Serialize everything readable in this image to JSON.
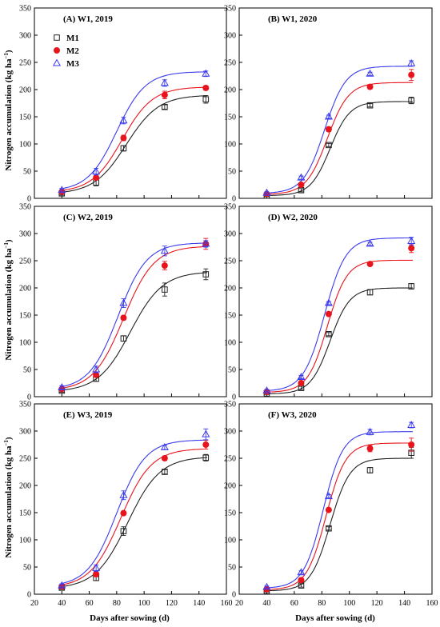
{
  "figure": {
    "ylabel": "Nitrogen accumulation (kg ha",
    "ylabel_sup": "−1",
    "ylabel_end": ")",
    "xlabel": "Days after sowing (d)"
  },
  "colors": {
    "M1": "#222222",
    "M2": "#e8141b",
    "M3": "#3a3aee"
  },
  "chart_data": [
    {
      "type": "scatter",
      "title": "(A) W1, 2019",
      "grid": false,
      "legend": "top-left",
      "xlim": [
        20,
        160
      ],
      "ylim": [
        0,
        350
      ],
      "xticks": [
        20,
        40,
        60,
        80,
        100,
        120,
        140,
        160
      ],
      "yticks": [
        0,
        50,
        100,
        150,
        200,
        250,
        300,
        350
      ],
      "x": [
        40,
        65,
        85,
        115,
        145
      ],
      "series": [
        {
          "name": "M1",
          "values": [
            9,
            29,
            92,
            168,
            182
          ],
          "errors": [
            3,
            6,
            5,
            4,
            7
          ],
          "fit": [
            8,
            190,
            0.085,
            87
          ]
        },
        {
          "name": "M2",
          "values": [
            12,
            38,
            111,
            190,
            203
          ],
          "errors": [
            3,
            4,
            5,
            7,
            4
          ],
          "fit": [
            11,
            205,
            0.09,
            84
          ]
        },
        {
          "name": "M3",
          "values": [
            15,
            49,
            143,
            212,
            229
          ],
          "errors": [
            3,
            6,
            6,
            6,
            5
          ],
          "fit": [
            13,
            233,
            0.095,
            80
          ]
        }
      ]
    },
    {
      "type": "scatter",
      "title": "(B) W1, 2020",
      "grid": false,
      "legend": "none",
      "xlim": [
        20,
        160
      ],
      "ylim": [
        0,
        350
      ],
      "xticks": [
        20,
        40,
        60,
        80,
        100,
        120,
        140,
        160
      ],
      "yticks": [
        0,
        50,
        100,
        150,
        200,
        250,
        300,
        350
      ],
      "x": [
        40,
        65,
        85,
        115,
        145
      ],
      "series": [
        {
          "name": "M1",
          "values": [
            5,
            15,
            98,
            171,
            180
          ],
          "errors": [
            2,
            3,
            3,
            3,
            6
          ],
          "fit": [
            5,
            178,
            0.14,
            86
          ]
        },
        {
          "name": "M2",
          "values": [
            8,
            25,
            127,
            205,
            227
          ],
          "errors": [
            2,
            3,
            4,
            4,
            10
          ],
          "fit": [
            7,
            213,
            0.13,
            84
          ]
        },
        {
          "name": "M3",
          "values": [
            10,
            38,
            150,
            229,
            248
          ],
          "errors": [
            2,
            3,
            3,
            3,
            5
          ],
          "fit": [
            9,
            243,
            0.13,
            82
          ]
        }
      ]
    },
    {
      "type": "scatter",
      "title": "(C) W2, 2019",
      "grid": false,
      "legend": "none",
      "xlim": [
        20,
        160
      ],
      "ylim": [
        0,
        350
      ],
      "xticks": [
        20,
        40,
        60,
        80,
        100,
        120,
        140,
        160
      ],
      "yticks": [
        0,
        50,
        100,
        150,
        200,
        250,
        300,
        350
      ],
      "x": [
        40,
        65,
        85,
        115,
        145
      ],
      "series": [
        {
          "name": "M1",
          "values": [
            11,
            33,
            107,
            197,
            225
          ],
          "errors": [
            3,
            5,
            5,
            12,
            10
          ],
          "fit": [
            9,
            230,
            0.085,
            90
          ]
        },
        {
          "name": "M2",
          "values": [
            14,
            40,
            145,
            241,
            281
          ],
          "errors": [
            3,
            4,
            4,
            8,
            10
          ],
          "fit": [
            11,
            277,
            0.09,
            85
          ]
        },
        {
          "name": "M3",
          "values": [
            17,
            50,
            172,
            268,
            281
          ],
          "errors": [
            3,
            6,
            8,
            9,
            6
          ],
          "fit": [
            13,
            283,
            0.095,
            81
          ]
        }
      ]
    },
    {
      "type": "scatter",
      "title": "(D) W2, 2020",
      "grid": false,
      "legend": "none",
      "xlim": [
        20,
        160
      ],
      "ylim": [
        0,
        350
      ],
      "xticks": [
        20,
        40,
        60,
        80,
        100,
        120,
        140,
        160
      ],
      "yticks": [
        0,
        50,
        100,
        150,
        200,
        250,
        300,
        350
      ],
      "x": [
        40,
        65,
        85,
        115,
        145
      ],
      "series": [
        {
          "name": "M1",
          "values": [
            6,
            16,
            115,
            192,
            203
          ],
          "errors": [
            2,
            3,
            3,
            5,
            5
          ],
          "fit": [
            5,
            200,
            0.14,
            86
          ]
        },
        {
          "name": "M2",
          "values": [
            9,
            25,
            152,
            244,
            273
          ],
          "errors": [
            2,
            3,
            3,
            3,
            8
          ],
          "fit": [
            8,
            251,
            0.14,
            84
          ]
        },
        {
          "name": "M3",
          "values": [
            11,
            36,
            172,
            281,
            286
          ],
          "errors": [
            2,
            3,
            3,
            3,
            7
          ],
          "fit": [
            10,
            292,
            0.13,
            82
          ]
        }
      ]
    },
    {
      "type": "scatter",
      "title": "(E) W3, 2019",
      "grid": false,
      "legend": "none",
      "xlim": [
        20,
        160
      ],
      "ylim": [
        0,
        350
      ],
      "xticks": [
        20,
        40,
        60,
        80,
        100,
        120,
        140,
        160
      ],
      "yticks": [
        0,
        50,
        100,
        150,
        200,
        250,
        300,
        350
      ],
      "x": [
        40,
        65,
        85,
        115,
        145
      ],
      "series": [
        {
          "name": "M1",
          "values": [
            12,
            30,
            116,
            225,
            251
          ],
          "errors": [
            3,
            5,
            8,
            4,
            6
          ],
          "fit": [
            10,
            253,
            0.085,
            88
          ]
        },
        {
          "name": "M2",
          "values": [
            14,
            37,
            149,
            250,
            275
          ],
          "errors": [
            3,
            5,
            4,
            4,
            8
          ],
          "fit": [
            12,
            268,
            0.09,
            83
          ]
        },
        {
          "name": "M3",
          "values": [
            16,
            48,
            182,
            270,
            294
          ],
          "errors": [
            3,
            6,
            8,
            4,
            10
          ],
          "fit": [
            14,
            284,
            0.095,
            80
          ]
        }
      ]
    },
    {
      "type": "scatter",
      "title": "(F) W3, 2020",
      "grid": false,
      "legend": "none",
      "xlim": [
        20,
        160
      ],
      "ylim": [
        0,
        350
      ],
      "xticks": [
        20,
        40,
        60,
        80,
        100,
        120,
        140,
        160
      ],
      "yticks": [
        0,
        50,
        100,
        150,
        200,
        250,
        300,
        350
      ],
      "x": [
        40,
        65,
        85,
        115,
        145
      ],
      "series": [
        {
          "name": "M1",
          "values": [
            6,
            16,
            121,
            228,
            260
          ],
          "errors": [
            2,
            3,
            3,
            5,
            10
          ],
          "fit": [
            6,
            250,
            0.14,
            86
          ]
        },
        {
          "name": "M2",
          "values": [
            9,
            26,
            155,
            268,
            275
          ],
          "errors": [
            2,
            3,
            3,
            6,
            12
          ],
          "fit": [
            8,
            278,
            0.14,
            83
          ]
        },
        {
          "name": "M3",
          "values": [
            13,
            40,
            180,
            298,
            311
          ],
          "errors": [
            2,
            3,
            3,
            5,
            5
          ],
          "fit": [
            11,
            299,
            0.14,
            81
          ]
        }
      ]
    }
  ]
}
